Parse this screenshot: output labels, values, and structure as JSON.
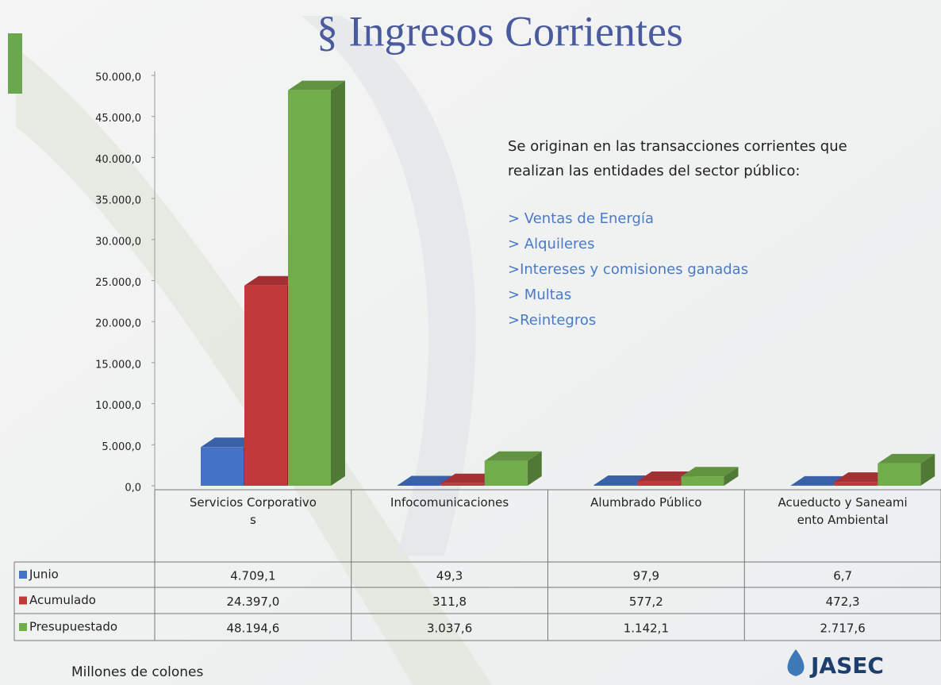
{
  "chart_data": {
    "type": "bar",
    "title": "§ Ingresos Corrientes",
    "description": [
      "Se originan en las transacciones corrientes que",
      "realizan las entidades del sector público:"
    ],
    "bullets": [
      "> Ventas de Energía",
      "> Alquileres",
      ">Intereses y comisiones ganadas",
      "> Multas",
      ">Reintegros"
    ],
    "note": "Millones de colones",
    "logo": "JASEC",
    "categories": [
      "Servicios Corporativos",
      "Infocomunicaciones",
      "Alumbrado Público",
      "Acueducto y Saneamiento Ambiental"
    ],
    "series": [
      {
        "name": "Junio",
        "color": "#4472c4",
        "values": [
          4709.1,
          49.3,
          97.9,
          6.7
        ],
        "value_labels": [
          "4.709,1",
          "49,3",
          "97,9",
          "6,7"
        ]
      },
      {
        "name": "Acumulado",
        "color": "#c0393b",
        "values": [
          24397.0,
          311.8,
          577.2,
          472.3
        ],
        "value_labels": [
          "24.397,0",
          "311,8",
          "577,2",
          "472,3"
        ]
      },
      {
        "name": "Presupuestado",
        "color": "#72ad4c",
        "values": [
          48194.6,
          3037.6,
          1142.1,
          2717.6
        ],
        "value_labels": [
          "48.194,6",
          "3.037,6",
          "1.142,1",
          "2.717,6"
        ]
      }
    ],
    "ylim": [
      0,
      50000
    ],
    "yticks": [
      {
        "value": 0,
        "label": "0,0"
      },
      {
        "value": 5000,
        "label": "5.000,0"
      },
      {
        "value": 10000,
        "label": "10.000,0"
      },
      {
        "value": 15000,
        "label": "15.000,0"
      },
      {
        "value": 20000,
        "label": "20.000,0"
      },
      {
        "value": 25000,
        "label": "25.000,0"
      },
      {
        "value": 30000,
        "label": "30.000,0"
      },
      {
        "value": 35000,
        "label": "35.000,0"
      },
      {
        "value": 40000,
        "label": "40.000,0"
      },
      {
        "value": 45000,
        "label": "45.000,0"
      },
      {
        "value": 50000,
        "label": "50.000,0"
      }
    ]
  }
}
